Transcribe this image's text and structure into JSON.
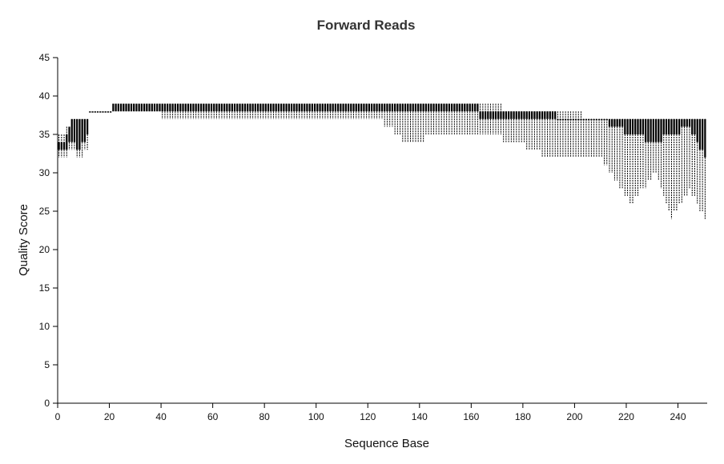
{
  "chart_data": {
    "type": "box",
    "title": "Forward Reads",
    "xlabel": "Sequence Base",
    "ylabel": "Quality Score",
    "xlim": [
      0,
      251
    ],
    "ylim": [
      0,
      45
    ],
    "x_ticks": [
      0,
      20,
      40,
      60,
      80,
      100,
      120,
      140,
      160,
      180,
      200,
      220,
      240
    ],
    "y_ticks": [
      0,
      5,
      10,
      15,
      20,
      25,
      30,
      35,
      40,
      45
    ],
    "grid": false,
    "legend": "none",
    "summary_knots": [
      {
        "x": 0,
        "median": 33,
        "q1": 33,
        "q3": 34,
        "min": 32,
        "max": 35
      },
      {
        "x": 3,
        "median": 33,
        "q1": 33,
        "q3": 34,
        "min": 32,
        "max": 35
      },
      {
        "x": 6,
        "median": 35,
        "q1": 34,
        "q3": 37,
        "min": 33,
        "max": 37
      },
      {
        "x": 9,
        "median": 34,
        "q1": 33,
        "q3": 37,
        "min": 32,
        "max": 37
      },
      {
        "x": 12,
        "median": 37,
        "q1": 35,
        "q3": 37,
        "min": 33,
        "max": 37
      },
      {
        "x": 13,
        "median": 38,
        "q1": 38,
        "q3": 38,
        "min": 38,
        "max": 38
      },
      {
        "x": 30,
        "median": 39,
        "q1": 38,
        "q3": 39,
        "min": 38,
        "max": 39
      },
      {
        "x": 50,
        "median": 39,
        "q1": 38,
        "q3": 39,
        "min": 37,
        "max": 39
      },
      {
        "x": 80,
        "median": 39,
        "q1": 38,
        "q3": 39,
        "min": 37,
        "max": 39
      },
      {
        "x": 100,
        "median": 39,
        "q1": 38,
        "q3": 39,
        "min": 37,
        "max": 39
      },
      {
        "x": 125,
        "median": 39,
        "q1": 38,
        "q3": 39,
        "min": 37,
        "max": 39
      },
      {
        "x": 135,
        "median": 39,
        "q1": 38,
        "q3": 39,
        "min": 34,
        "max": 39
      },
      {
        "x": 150,
        "median": 39,
        "q1": 38,
        "q3": 39,
        "min": 35,
        "max": 39
      },
      {
        "x": 160,
        "median": 39,
        "q1": 38,
        "q3": 39,
        "min": 35,
        "max": 39
      },
      {
        "x": 166,
        "median": 38,
        "q1": 37,
        "q3": 38,
        "min": 35,
        "max": 39
      },
      {
        "x": 178,
        "median": 38,
        "q1": 37,
        "q3": 38,
        "min": 34,
        "max": 38
      },
      {
        "x": 190,
        "median": 38,
        "q1": 37,
        "q3": 38,
        "min": 32,
        "max": 38
      },
      {
        "x": 197,
        "median": 37,
        "q1": 37,
        "q3": 37,
        "min": 32,
        "max": 38
      },
      {
        "x": 210,
        "median": 37,
        "q1": 37,
        "q3": 37,
        "min": 32,
        "max": 37
      },
      {
        "x": 222,
        "median": 37,
        "q1": 35,
        "q3": 37,
        "min": 26,
        "max": 37
      },
      {
        "x": 232,
        "median": 37,
        "q1": 34,
        "q3": 37,
        "min": 30,
        "max": 37
      },
      {
        "x": 238,
        "median": 37,
        "q1": 35,
        "q3": 37,
        "min": 24,
        "max": 37
      },
      {
        "x": 245,
        "median": 37,
        "q1": 36,
        "q3": 37,
        "min": 28,
        "max": 37
      },
      {
        "x": 251,
        "median": 37,
        "q1": 32,
        "q3": 37,
        "min": 24,
        "max": 37
      }
    ]
  }
}
